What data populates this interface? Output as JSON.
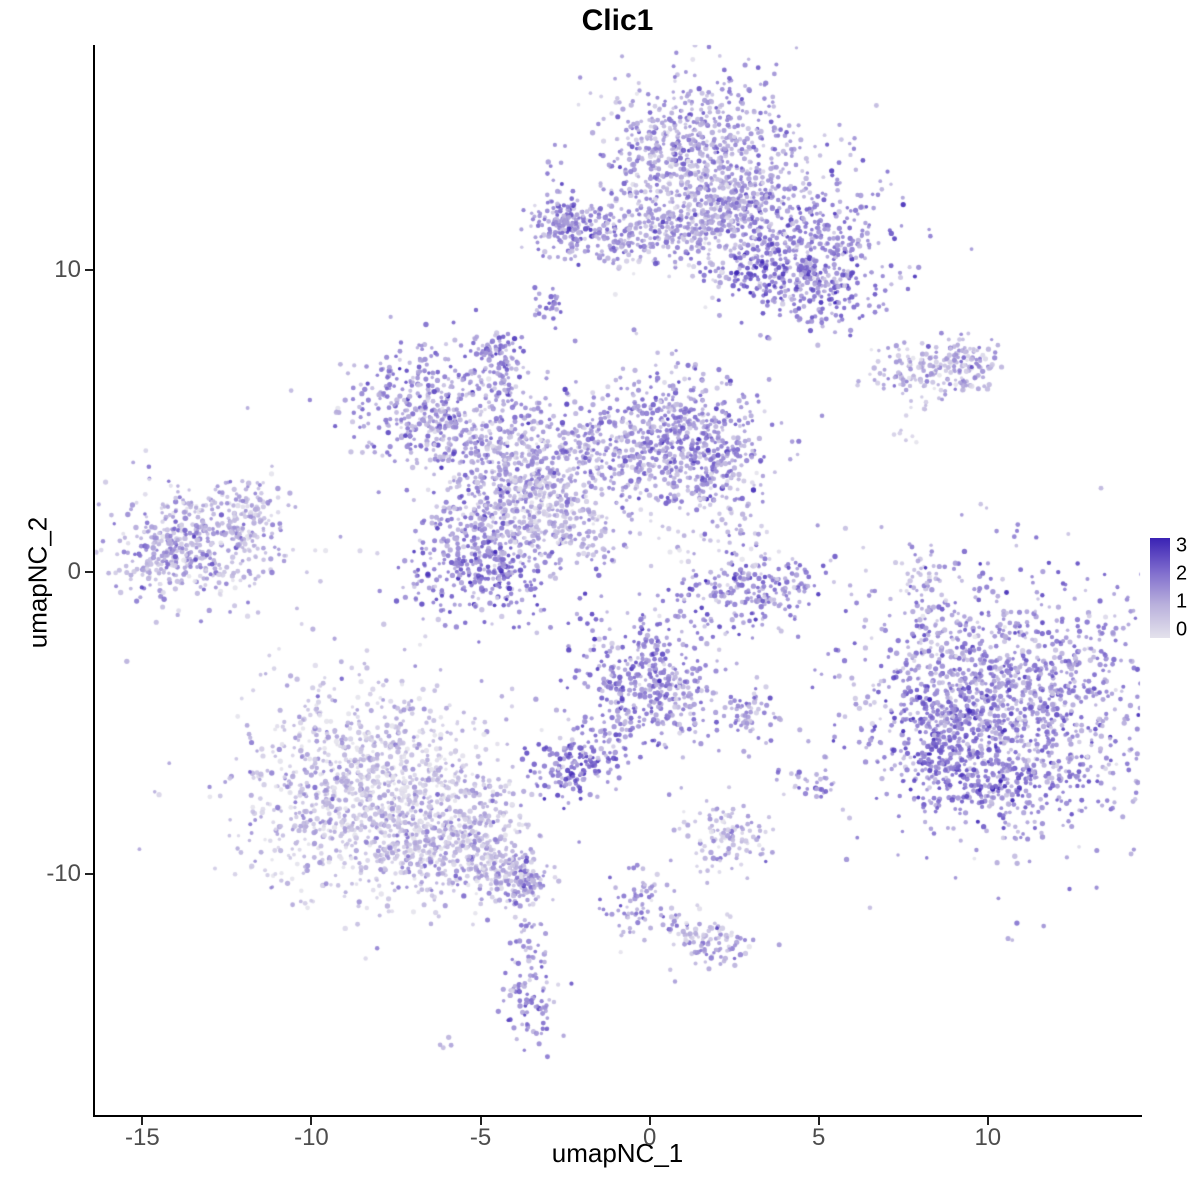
{
  "chart_data": {
    "type": "scatter",
    "title": "Clic1",
    "xlabel": "umapNC_1",
    "ylabel": "umapNC_2",
    "xlim": [
      -16.4,
      14.5
    ],
    "ylim": [
      -18.0,
      17.45
    ],
    "x_ticks": [
      "-15",
      "-10",
      "-5",
      "0",
      "5",
      "10"
    ],
    "x_tick_values": [
      -15,
      -10,
      -5,
      0,
      5,
      10
    ],
    "y_ticks": [
      "10",
      "0",
      "-10"
    ],
    "y_tick_values": [
      10,
      0,
      -10
    ],
    "grid": false,
    "legend": {
      "position": "right",
      "ticks": [
        "3",
        "2",
        "1",
        "0"
      ],
      "tick_values": [
        3,
        2,
        1,
        0
      ],
      "min": 0,
      "max": 3
    },
    "color_scale": {
      "domain": [
        0,
        1,
        2,
        3
      ],
      "stops": [
        "#e4e2ec",
        "#b9b0dc",
        "#7e6bcd",
        "#3a22b4"
      ]
    },
    "point": {
      "radius_min": 1.7,
      "radius_jitter": 1.0,
      "alpha": 0.88
    },
    "seed": 7,
    "expr_sd_default": 0.55,
    "clusters": [
      {
        "cx": 1.8,
        "cy": 13.9,
        "sx": 1.5,
        "sy": 1.35,
        "n": 650,
        "expr": 1.3
      },
      {
        "cx": 0.6,
        "cy": 13.3,
        "sx": 0.8,
        "sy": 1.0,
        "n": 150,
        "expr": 0.9
      },
      {
        "cx": 2.3,
        "cy": 11.9,
        "sx": 0.8,
        "sy": 0.8,
        "n": 180,
        "expr": 1.2
      },
      {
        "cx": 4.6,
        "cy": 10.8,
        "sx": 1.25,
        "sy": 1.2,
        "n": 420,
        "expr": 1.6
      },
      {
        "cx": 5.0,
        "cy": 9.3,
        "sx": 0.9,
        "sy": 0.65,
        "n": 140,
        "expr": 1.8
      },
      {
        "cx": 3.2,
        "cy": 9.9,
        "sx": 0.5,
        "sy": 0.4,
        "n": 70,
        "expr": 2.3
      },
      {
        "cx": 1.9,
        "cy": 11.2,
        "sx": 1.0,
        "sy": 0.9,
        "n": 70,
        "expr": 0.8
      },
      {
        "cx": -2.6,
        "cy": 11.5,
        "sx": 0.5,
        "sy": 0.45,
        "n": 110,
        "expr": 1.5
      },
      {
        "cx": -2.9,
        "cy": 8.75,
        "sx": 0.28,
        "sy": 0.3,
        "n": 25,
        "expr": 1.8
      },
      {
        "cx": 9.5,
        "cy": 6.9,
        "sx": 0.45,
        "sy": 0.4,
        "n": 60,
        "expr": 1.3
      },
      {
        "cx": 7.5,
        "cy": 4.8,
        "sx": 0.25,
        "sy": 0.3,
        "n": 8,
        "expr": 0.7
      },
      {
        "cx": -6.6,
        "cy": 5.4,
        "sx": 1.15,
        "sy": 1.05,
        "n": 380,
        "expr": 1.5
      },
      {
        "cx": -4.5,
        "cy": 7.3,
        "sx": 0.42,
        "sy": 0.4,
        "n": 65,
        "expr": 1.6
      },
      {
        "cx": -3.8,
        "cy": 3.5,
        "sx": 1.15,
        "sy": 1.0,
        "n": 330,
        "expr": 1.1
      },
      {
        "cx": 0.2,
        "cy": 4.5,
        "sx": 1.55,
        "sy": 1.15,
        "n": 580,
        "expr": 1.5
      },
      {
        "cx": 1.9,
        "cy": 3.9,
        "sx": 0.8,
        "sy": 0.8,
        "n": 150,
        "expr": 1.5
      },
      {
        "cx": -5.0,
        "cy": 0.3,
        "sx": 1.15,
        "sy": 1.0,
        "n": 420,
        "expr": 1.7
      },
      {
        "cx": -3.2,
        "cy": 1.9,
        "sx": 0.8,
        "sy": 0.7,
        "n": 110,
        "expr": 0.6
      },
      {
        "cx": 1.4,
        "cy": 2.0,
        "sx": 0.9,
        "sy": 1.0,
        "n": 55,
        "expr": 0.7
      },
      {
        "cx": -13.2,
        "cy": 1.0,
        "sx": 1.25,
        "sy": 0.95,
        "n": 420,
        "expr": 1.0
      },
      {
        "cx": -14.3,
        "cy": 0.7,
        "sx": 0.6,
        "sy": 0.6,
        "n": 110,
        "expr": 1.4
      },
      {
        "cx": 3.1,
        "cy": -0.45,
        "sx": 1.15,
        "sy": 0.65,
        "n": 230,
        "expr": 1.6
      },
      {
        "cx": 8.0,
        "cy": -1.8,
        "sx": 0.15,
        "sy": 0.15,
        "n": 6,
        "expr": 2.0
      },
      {
        "cx": 8.0,
        "cy": -2.7,
        "sx": 0.2,
        "sy": 0.25,
        "n": 5,
        "expr": 1.0
      },
      {
        "cx": 10.6,
        "cy": -4.4,
        "sx": 2.25,
        "sy": 2.1,
        "n": 1500,
        "expr": 1.5
      },
      {
        "cx": 8.7,
        "cy": -5.6,
        "sx": 0.7,
        "sy": 1.0,
        "n": 180,
        "expr": 2.0
      },
      {
        "cx": 8.8,
        "cy": -2.8,
        "sx": 0.55,
        "sy": 0.6,
        "n": 45,
        "expr": 1.2
      },
      {
        "cx": 10.0,
        "cy": -6.9,
        "sx": 1.2,
        "sy": 0.5,
        "n": 120,
        "expr": 1.9
      },
      {
        "cx": -0.15,
        "cy": -3.6,
        "sx": 1.05,
        "sy": 1.25,
        "n": 420,
        "expr": 1.6
      },
      {
        "cx": -2.4,
        "cy": -6.6,
        "sx": 0.62,
        "sy": 0.5,
        "n": 120,
        "expr": 2.0
      },
      {
        "cx": 2.9,
        "cy": -4.7,
        "sx": 0.5,
        "sy": 0.35,
        "n": 55,
        "expr": 1.5
      },
      {
        "cx": 1.1,
        "cy": -4.3,
        "sx": 0.4,
        "sy": 0.5,
        "n": 25,
        "expr": 1.0
      },
      {
        "cx": -8.3,
        "cy": -7.3,
        "sx": 1.9,
        "sy": 1.8,
        "n": 1200,
        "expr": 0.7
      },
      {
        "cx": -5.9,
        "cy": -9.0,
        "sx": 1.3,
        "sy": 0.95,
        "n": 380,
        "expr": 0.9
      },
      {
        "cx": -4.3,
        "cy": -9.9,
        "sx": 0.75,
        "sy": 0.6,
        "n": 140,
        "expr": 1.1
      },
      {
        "cx": -3.6,
        "cy": -10.3,
        "sx": 0.4,
        "sy": 0.4,
        "n": 60,
        "expr": 1.2
      },
      {
        "cx": -3.5,
        "cy": -14.2,
        "sx": 0.45,
        "sy": 0.7,
        "n": 80,
        "expr": 1.5
      },
      {
        "cx": -6.1,
        "cy": -15.6,
        "sx": 0.2,
        "sy": 0.15,
        "n": 4,
        "expr": 1.0
      },
      {
        "cx": -0.3,
        "cy": -11.1,
        "sx": 0.45,
        "sy": 0.55,
        "n": 65,
        "expr": 1.2
      },
      {
        "cx": 2.1,
        "cy": -12.4,
        "sx": 0.55,
        "sy": 0.4,
        "n": 65,
        "expr": 1.3
      },
      {
        "cx": 2.4,
        "cy": -8.7,
        "sx": 0.75,
        "sy": 0.6,
        "n": 110,
        "expr": 0.9
      },
      {
        "cx": 4.8,
        "cy": -7.0,
        "sx": 0.5,
        "sy": 0.3,
        "n": 28,
        "expr": 1.3
      }
    ],
    "strips": [
      {
        "x1": -3.0,
        "y1": 11.4,
        "x2": 1.1,
        "y2": 11.15,
        "w": 0.55,
        "n": 280,
        "expr": 1.4
      },
      {
        "x1": 6.7,
        "y1": 6.7,
        "x2": 9.8,
        "y2": 6.9,
        "w": 0.45,
        "n": 150,
        "expr": 1.0
      },
      {
        "x1": 7.9,
        "y1": 6.2,
        "x2": 8.3,
        "y2": 5.5,
        "w": 0.4,
        "n": 14,
        "expr": 0.9
      },
      {
        "x1": -4.6,
        "y1": 6.9,
        "x2": -4.2,
        "y2": 5.3,
        "w": 0.45,
        "n": 70,
        "expr": 1.3
      },
      {
        "x1": -3.4,
        "y1": 2.5,
        "x2": -1.3,
        "y2": 0.8,
        "w": 0.5,
        "n": 110,
        "expr": 1.0
      },
      {
        "x1": -5.8,
        "y1": 4.5,
        "x2": -4.4,
        "y2": 3.8,
        "w": 0.6,
        "n": 90,
        "expr": 1.3
      },
      {
        "x1": -3.3,
        "y1": 3.2,
        "x2": -0.9,
        "y2": 4.2,
        "w": 0.7,
        "n": 110,
        "expr": 1.2
      },
      {
        "x1": -4.3,
        "y1": 2.5,
        "x2": -4.9,
        "y2": 1.2,
        "w": 0.65,
        "n": 90,
        "expr": 1.4
      },
      {
        "x1": -12.4,
        "y1": 2.2,
        "x2": -11.3,
        "y2": 2.5,
        "w": 0.4,
        "n": 40,
        "expr": 1.0
      },
      {
        "x1": -12.3,
        "y1": 1.4,
        "x2": -11.2,
        "y2": 1.6,
        "w": 0.35,
        "n": 35,
        "expr": 1.0
      },
      {
        "x1": 2.3,
        "y1": 2.9,
        "x2": 3.1,
        "y2": 0.4,
        "w": 0.6,
        "n": 35,
        "expr": 0.9
      },
      {
        "x1": 7.85,
        "y1": 0.8,
        "x2": 8.1,
        "y2": -1.3,
        "w": 0.3,
        "n": 55,
        "expr": 1.0
      },
      {
        "x1": -0.6,
        "y1": -4.9,
        "x2": -2.1,
        "y2": -6.2,
        "w": 0.4,
        "n": 55,
        "expr": 1.4
      },
      {
        "x1": -3.8,
        "y1": -10.9,
        "x2": -3.5,
        "y2": -13.2,
        "w": 0.3,
        "n": 35,
        "expr": 1.2
      },
      {
        "x1": -0.1,
        "y1": -11.5,
        "x2": 2.0,
        "y2": -12.3,
        "w": 0.35,
        "n": 45,
        "expr": 1.1
      }
    ],
    "singles": [
      {
        "x": -10.6,
        "y": 6.0,
        "expr": 0.9
      },
      {
        "x": 5.6,
        "y": 8.3,
        "expr": 1.2
      },
      {
        "x": -0.2,
        "y": -10.3,
        "expr": 1.0
      },
      {
        "x": 4.4,
        "y": -6.8,
        "expr": 1.1
      },
      {
        "x": -3.2,
        "y": -15.3,
        "expr": 1.3
      }
    ]
  }
}
